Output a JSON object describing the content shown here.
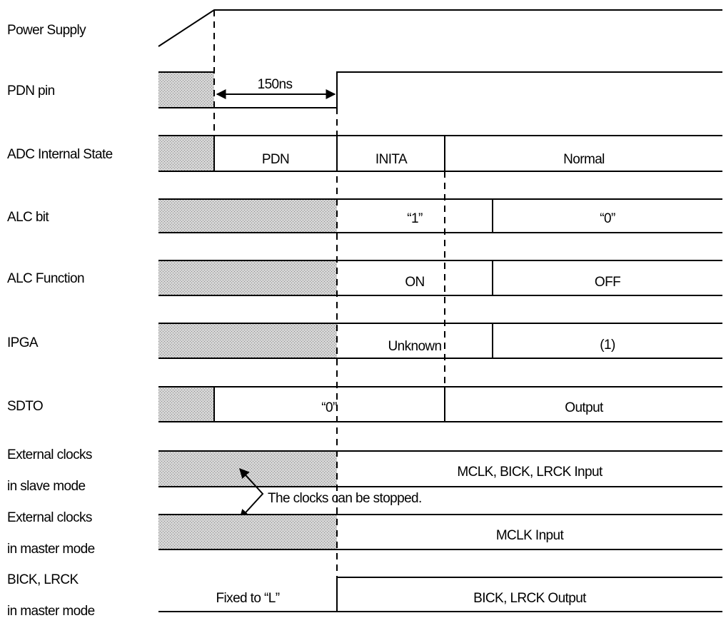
{
  "rows": {
    "power": {
      "label": "Power Supply"
    },
    "pdn": {
      "label": "PDN pin",
      "timing": "150ns"
    },
    "adc": {
      "label": "ADC Internal State",
      "states": [
        "PDN",
        "INITA",
        "Normal"
      ]
    },
    "alcbit": {
      "label": "ALC bit",
      "states": [
        "“1”",
        "“0”"
      ]
    },
    "alcfunc": {
      "label": "ALC Function",
      "states": [
        "ON",
        "OFF"
      ]
    },
    "ipga": {
      "label": "IPGA",
      "states": [
        "Unknown",
        "(1)"
      ]
    },
    "sdto": {
      "label": "SDTO",
      "states": [
        "“0”",
        "Output"
      ]
    },
    "clk_slave": {
      "label_line1": "External clocks",
      "label_line2": "in slave mode",
      "state": "MCLK, BICK, LRCK Input"
    },
    "clk_master": {
      "label_line1": "External clocks",
      "label_line2": "in master mode",
      "state": "MCLK Input"
    },
    "bick": {
      "label_line1": "BICK, LRCK",
      "label_line2": "in master mode",
      "states": [
        "Fixed to “L”",
        "BICK, LRCK Output"
      ]
    }
  },
  "annotation": "The clocks can be stopped."
}
